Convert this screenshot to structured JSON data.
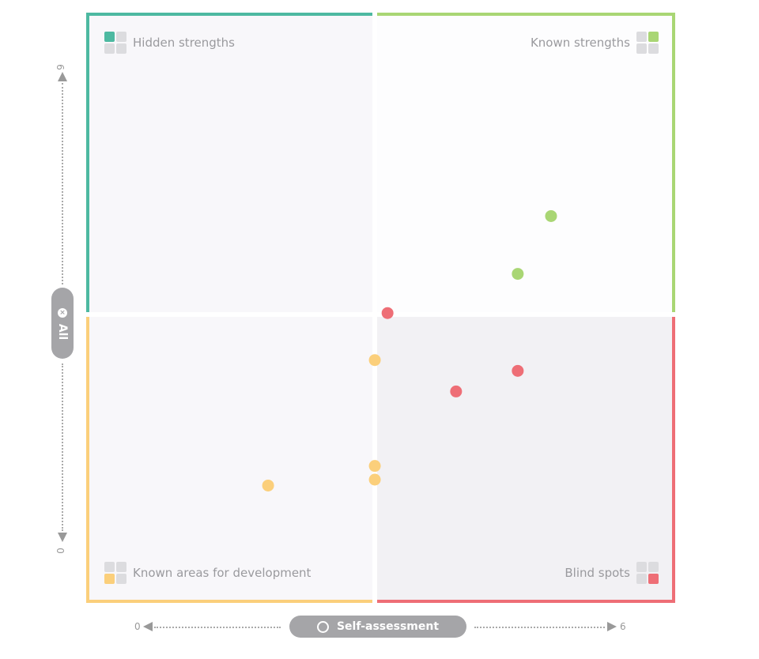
{
  "chart_data": {
    "type": "scatter",
    "xlabel": "Self-assessment",
    "ylabel": "All",
    "xlim": [
      0,
      6
    ],
    "ylim": [
      0,
      6
    ],
    "x_ticks": [
      "0",
      "6"
    ],
    "y_ticks": [
      "0",
      "6"
    ],
    "quadrants": [
      {
        "name": "Hidden strengths",
        "position": "top-left",
        "color": "#4db9a1"
      },
      {
        "name": "Known strengths",
        "position": "top-right",
        "color": "#a9d674"
      },
      {
        "name": "Known areas for development",
        "position": "bottom-left",
        "color": "#fbcf7b"
      },
      {
        "name": "Blind spots",
        "position": "bottom-right",
        "color": "#ee6e76"
      }
    ],
    "points": [
      {
        "x": 4.74,
        "y": 3.94,
        "color": "#a9d674"
      },
      {
        "x": 4.4,
        "y": 3.35,
        "color": "#a9d674"
      },
      {
        "x": 3.07,
        "y": 2.95,
        "color": "#ee6e76"
      },
      {
        "x": 4.4,
        "y": 2.36,
        "color": "#ee6e76"
      },
      {
        "x": 3.77,
        "y": 2.15,
        "color": "#ee6e76"
      },
      {
        "x": 2.94,
        "y": 2.47,
        "color": "#fbcf7b"
      },
      {
        "x": 2.94,
        "y": 1.39,
        "color": "#fbcf7b"
      },
      {
        "x": 2.94,
        "y": 1.25,
        "color": "#fbcf7b"
      },
      {
        "x": 1.85,
        "y": 1.19,
        "color": "#fbcf7b"
      }
    ]
  },
  "icons": {
    "x_pill": "clock-icon",
    "y_pill": "close-circle-icon"
  }
}
